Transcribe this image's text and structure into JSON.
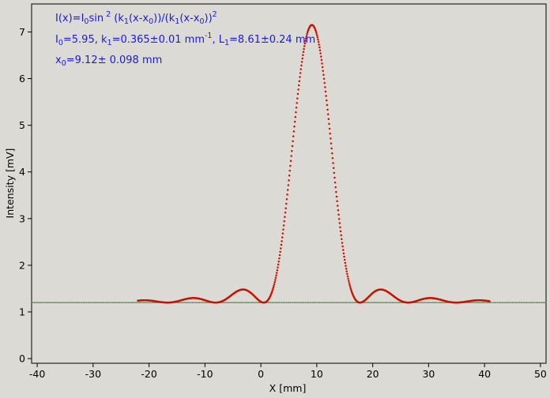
{
  "chart_data": {
    "type": "scatter",
    "xlabel": "X [mm]",
    "ylabel": "Intensity [mV]",
    "xlim": [
      -41,
      51
    ],
    "ylim": [
      -0.1,
      7.6
    ],
    "xticks": [
      -40,
      -30,
      -20,
      -10,
      0,
      10,
      20,
      30,
      40,
      50
    ],
    "yticks": [
      0,
      1,
      2,
      3,
      4,
      5,
      6,
      7
    ],
    "grid": false,
    "annotations": {
      "line1": {
        "a": "I(x)=I",
        "a_sub": "0",
        "b": "sin",
        "b_sup": " 2",
        "c": " (k",
        "c_sub": "1",
        "d": "(x-x",
        "d_sub": "0",
        "e": "))/(k",
        "e_sub": "1",
        "f": "(x-x",
        "f_sub": "0",
        "g": "))",
        "g_sup": "2"
      },
      "line2": {
        "a": "I",
        "a_sub": "0",
        "b": "=5.95,  k",
        "b_sub": "1",
        "c": "=0.365±0.01 mm",
        "c_sup": "-1",
        "d": ",   L",
        "d_sub": "1",
        "e": "=8.61±0.24 mm"
      },
      "line3": {
        "a": "x",
        "a_sub": "0",
        "b": "=9.12±   0.098 mm"
      }
    },
    "model": {
      "I0": 5.95,
      "k1": 0.365,
      "x0": 9.12,
      "baseline": 1.2
    },
    "series": [
      {
        "role": "measurement",
        "color": "#cc1100",
        "x_range": [
          -22,
          41
        ]
      },
      {
        "role": "background",
        "color": "#1e7a1e",
        "x_range": [
          -41,
          51
        ]
      }
    ]
  }
}
